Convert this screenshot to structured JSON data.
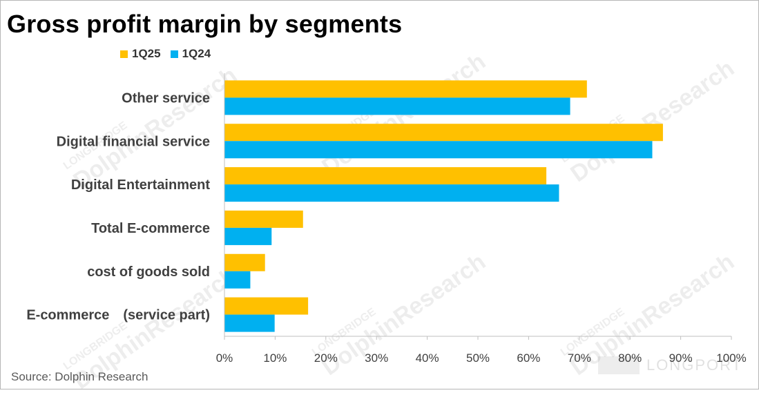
{
  "title": "Gross profit margin by segments",
  "source": "Source: Dolphin Research",
  "watermark": {
    "line1": "LONGBRIDGE",
    "line2": "DolphinResearch",
    "brand": "LONGPORT"
  },
  "legend": [
    {
      "name": "1Q25",
      "color": "#FFC000"
    },
    {
      "name": "1Q24",
      "color": "#00B0F0"
    }
  ],
  "chart_data": {
    "type": "bar",
    "orientation": "horizontal",
    "title": "Gross profit margin by segments",
    "categories": [
      "Other service",
      "Digital financial service",
      "Digital Entertainment",
      "Total E-commerce",
      "cost of goods sold",
      "E-commerce　(service part)"
    ],
    "series": [
      {
        "name": "1Q25",
        "color": "#FFC000",
        "values": [
          71.5,
          86.5,
          63.5,
          15.5,
          8.0,
          16.5
        ]
      },
      {
        "name": "1Q24",
        "color": "#00B0F0",
        "values": [
          68.2,
          84.4,
          66.0,
          9.3,
          5.1,
          9.9
        ]
      }
    ],
    "xlim": [
      0,
      100
    ],
    "xticks": [
      "0%",
      "10%",
      "20%",
      "30%",
      "40%",
      "50%",
      "60%",
      "70%",
      "80%",
      "90%",
      "100%"
    ],
    "grid": false,
    "legend_position": "top-left"
  }
}
